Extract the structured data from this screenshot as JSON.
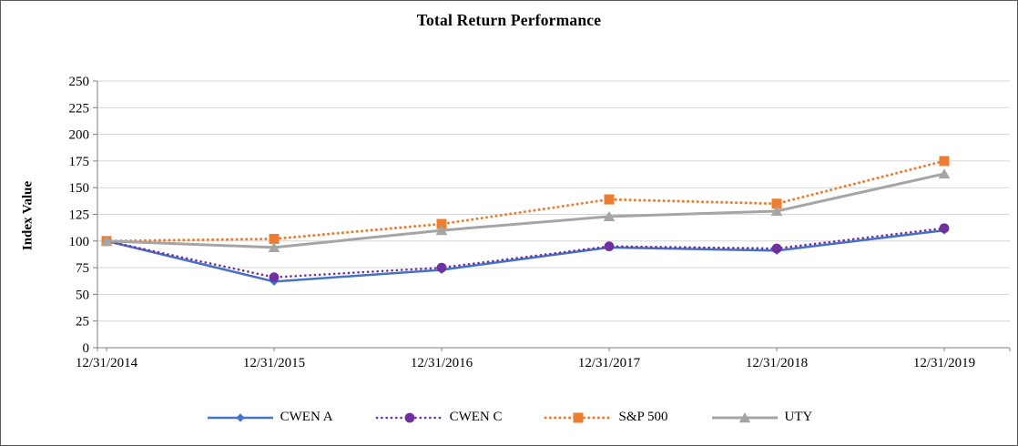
{
  "chart": {
    "title": "Total Return Performance",
    "y_axis_title": "Index Value"
  },
  "chart_data": {
    "type": "line",
    "title": "Total Return Performance",
    "xlabel": "",
    "ylabel": "Index Value",
    "categories": [
      "12/31/2014",
      "12/31/2015",
      "12/31/2016",
      "12/31/2017",
      "12/31/2018",
      "12/31/2019"
    ],
    "series": [
      {
        "name": "CWEN A",
        "values": [
          100,
          62,
          73,
          94,
          91,
          110
        ],
        "color": "#4472C4",
        "line_style": "solid",
        "marker": "diamond"
      },
      {
        "name": "CWEN C",
        "values": [
          100,
          66,
          75,
          95,
          93,
          112
        ],
        "color": "#7030A0",
        "line_style": "dotted",
        "marker": "circle"
      },
      {
        "name": "S&P 500",
        "values": [
          100,
          102,
          116,
          139,
          135,
          175
        ],
        "color": "#ED7D31",
        "line_style": "dotted",
        "marker": "square"
      },
      {
        "name": "UTY",
        "values": [
          100,
          94,
          110,
          123,
          128,
          163
        ],
        "color": "#A5A5A5",
        "line_style": "solid",
        "marker": "triangle"
      }
    ],
    "ylim": [
      0,
      250
    ],
    "y_tick_step": 25,
    "grid": "horizontal",
    "legend_position": "bottom",
    "colors": {
      "gridline": "#D6D6D6",
      "axis": "#808080",
      "text": "#000000"
    }
  }
}
